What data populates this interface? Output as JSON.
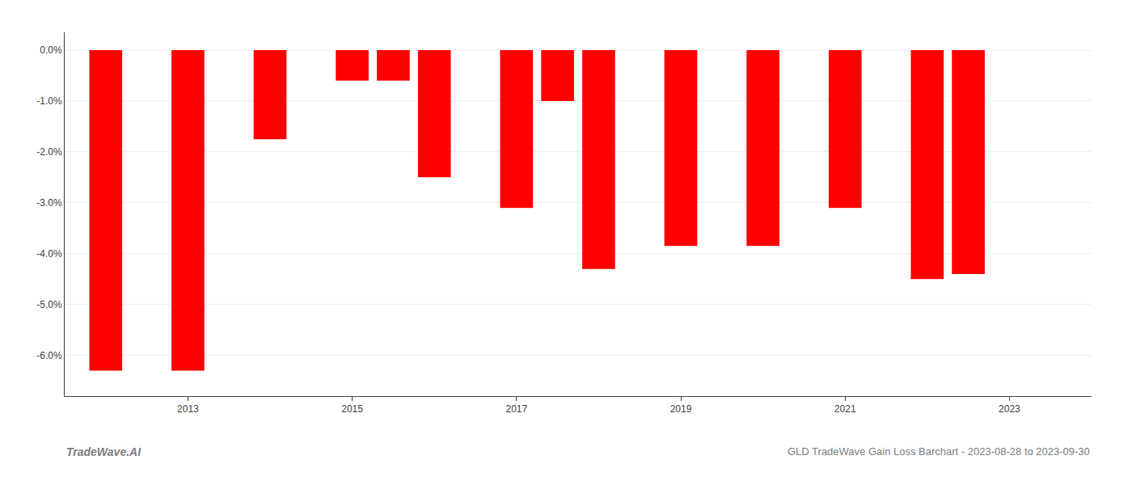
{
  "chart_data": {
    "type": "bar",
    "x": [
      2012,
      2013,
      2014,
      2015,
      2015.5,
      2016,
      2017,
      2017.5,
      2018,
      2019,
      2020,
      2021,
      2022,
      2022.5
    ],
    "values": [
      -6.3,
      -6.3,
      -1.75,
      -0.6,
      -0.6,
      -2.5,
      -3.1,
      -1.0,
      -4.3,
      -3.85,
      -3.85,
      -3.1,
      -4.5,
      -4.4
    ],
    "color": "#ff0000",
    "xlim": [
      2011.5,
      2024
    ],
    "xticks": [
      2013,
      2015,
      2017,
      2019,
      2021,
      2023
    ],
    "ylim": [
      -6.8,
      0.35
    ],
    "yticks": [
      {
        "value": 0.0,
        "label": "0.0%"
      },
      {
        "value": -1.0,
        "label": "-1.0%"
      },
      {
        "value": -2.0,
        "label": "-2.0%"
      },
      {
        "value": -3.0,
        "label": "-3.0%"
      },
      {
        "value": -4.0,
        "label": "-4.0%"
      },
      {
        "value": -5.0,
        "label": "-5.0%"
      },
      {
        "value": -6.0,
        "label": "-6.0%"
      }
    ],
    "grid": true,
    "annotations": [
      "TradeWave.AI",
      "GLD TradeWave Gain Loss Barchart - 2023-08-28 to 2023-09-30"
    ]
  }
}
